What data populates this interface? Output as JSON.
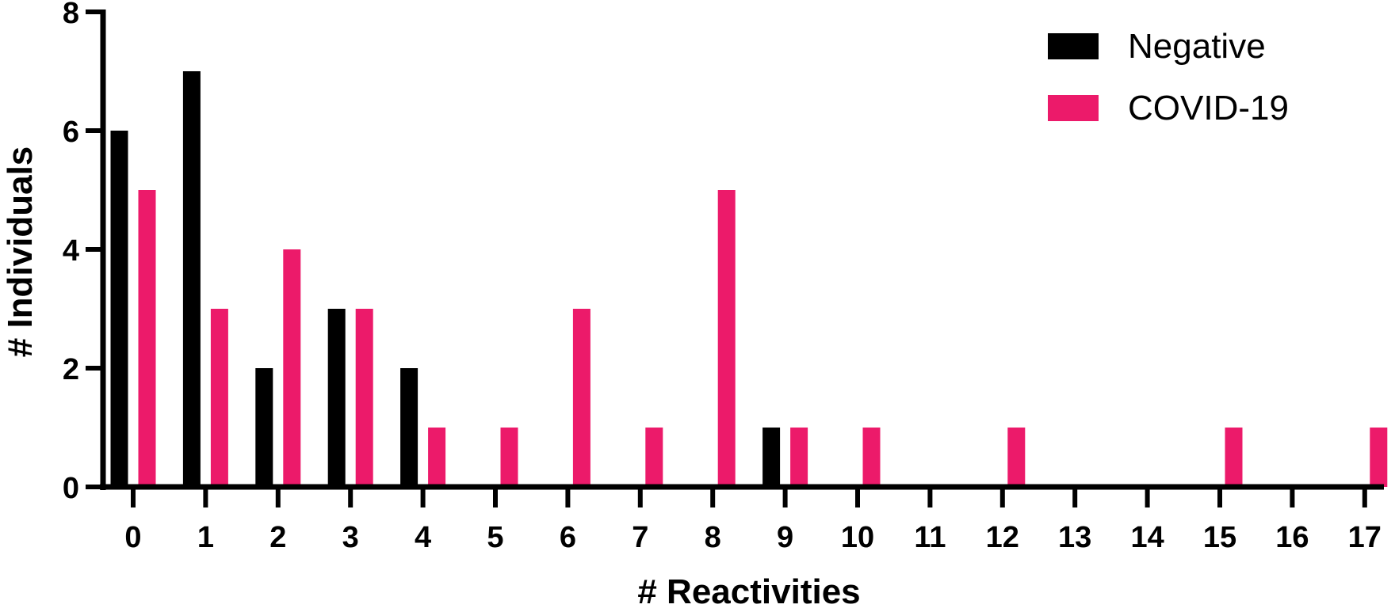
{
  "chart_data": {
    "type": "bar",
    "xlabel": "# Reactivities",
    "ylabel": "# Individuals",
    "categories": [
      "0",
      "1",
      "2",
      "3",
      "4",
      "5",
      "6",
      "7",
      "8",
      "9",
      "10",
      "11",
      "12",
      "13",
      "14",
      "15",
      "16",
      "17"
    ],
    "series": [
      {
        "name": "Negative",
        "color": "#000000",
        "values": [
          6,
          7,
          2,
          3,
          2,
          0,
          0,
          0,
          0,
          1,
          0,
          0,
          0,
          0,
          0,
          0,
          0,
          0
        ]
      },
      {
        "name": "COVID-19",
        "color": "#EC1A6A",
        "values": [
          5,
          3,
          4,
          3,
          1,
          1,
          3,
          1,
          5,
          1,
          1,
          0,
          1,
          0,
          0,
          1,
          0,
          1
        ]
      }
    ],
    "ylim": [
      0,
      8
    ],
    "yticks": [
      0,
      2,
      4,
      6,
      8
    ],
    "grid": false,
    "legend_position": "top-right"
  }
}
